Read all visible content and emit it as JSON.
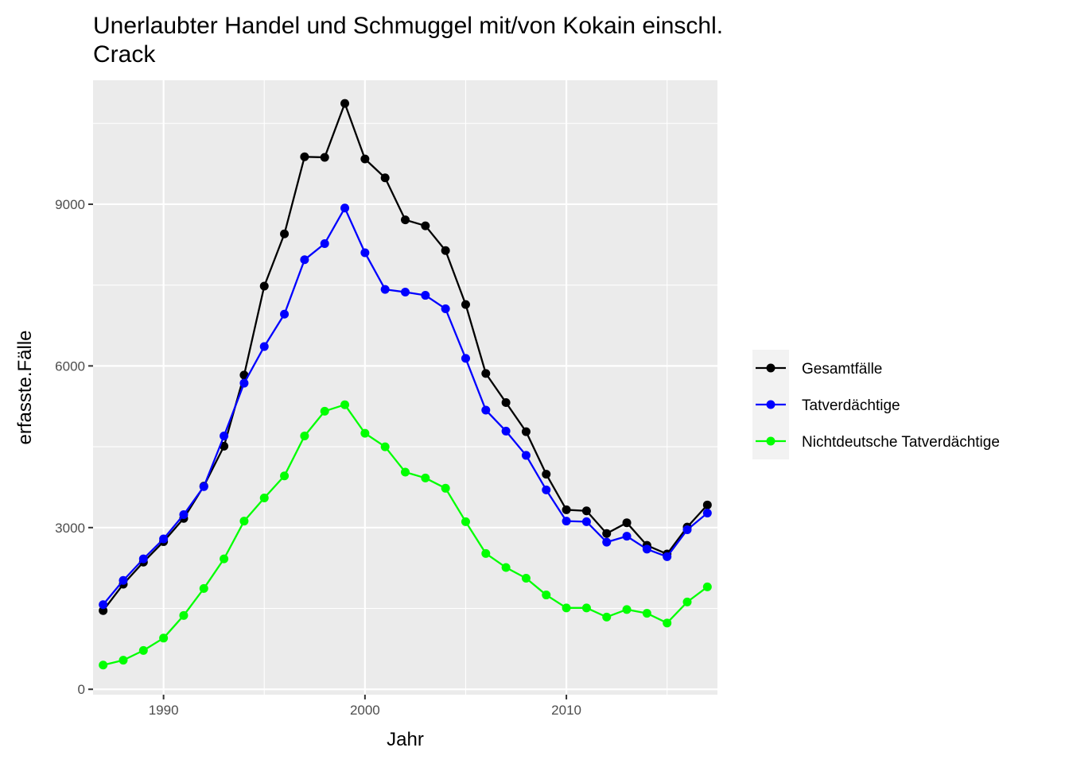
{
  "chart_data": {
    "type": "line",
    "title_lines": [
      "Unerlaubter Handel und Schmuggel mit/von Kokain einschl.",
      "Crack"
    ],
    "xlabel": "Jahr",
    "ylabel": "erfasste.Fälle",
    "xlim": [
      1986.5,
      2017.5
    ],
    "ylim": [
      -100,
      11300
    ],
    "x_ticks": [
      1990,
      2000,
      2010
    ],
    "x_minor": [
      1985,
      1995,
      2005,
      2015
    ],
    "y_ticks": [
      0,
      3000,
      6000,
      9000
    ],
    "y_minor": [
      1500,
      4500,
      7500,
      10500
    ],
    "grid": true,
    "legend_position": "right",
    "background": "#ebebeb",
    "x": [
      1987,
      1988,
      1989,
      1990,
      1991,
      1992,
      1993,
      1994,
      1995,
      1996,
      1997,
      1998,
      1999,
      2000,
      2001,
      2002,
      2003,
      2004,
      2005,
      2006,
      2007,
      2008,
      2009,
      2010,
      2011,
      2012,
      2013,
      2014,
      2015,
      2016,
      2017
    ],
    "series": [
      {
        "name": "Gesamtfälle",
        "color": "#000000",
        "values": [
          1460,
          1950,
          2360,
          2740,
          3170,
          3770,
          4510,
          5830,
          7480,
          8450,
          9880,
          9870,
          10870,
          9840,
          9490,
          8710,
          8600,
          8140,
          7140,
          5860,
          5320,
          4780,
          3990,
          3330,
          3310,
          2890,
          3090,
          2670,
          2510,
          3010,
          3420
        ]
      },
      {
        "name": "Tatverdächtige",
        "color": "#0000ff",
        "values": [
          1570,
          2020,
          2420,
          2790,
          3240,
          3760,
          4700,
          5680,
          6360,
          6960,
          7970,
          8270,
          8930,
          8100,
          7420,
          7370,
          7310,
          7060,
          6140,
          5180,
          4790,
          4340,
          3700,
          3120,
          3110,
          2730,
          2840,
          2600,
          2460,
          2960,
          3270
        ]
      },
      {
        "name": "Nichtdeutsche Tatverdächtige",
        "color": "#00ff00",
        "values": [
          450,
          540,
          720,
          950,
          1370,
          1870,
          2420,
          3120,
          3550,
          3960,
          4700,
          5160,
          5280,
          4750,
          4500,
          4030,
          3920,
          3730,
          3110,
          2520,
          2260,
          2060,
          1750,
          1510,
          1510,
          1340,
          1480,
          1410,
          1230,
          1620,
          1900
        ]
      }
    ]
  }
}
